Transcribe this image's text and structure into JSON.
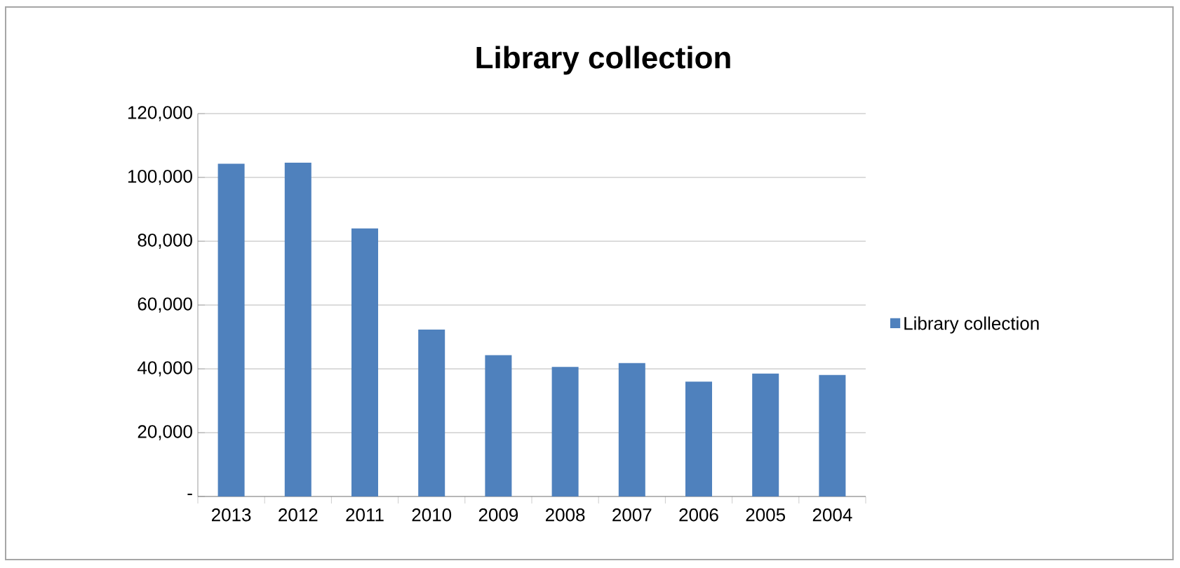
{
  "chart_data": {
    "type": "bar",
    "title": "Library collection",
    "categories": [
      "2013",
      "2012",
      "2011",
      "2010",
      "2009",
      "2008",
      "2007",
      "2006",
      "2005",
      "2004"
    ],
    "series": [
      {
        "name": "Library collection",
        "color": "#4f81bd",
        "values": [
          104300,
          104600,
          84000,
          52300,
          44300,
          40600,
          41800,
          36000,
          38500,
          38100
        ]
      }
    ],
    "ylim": [
      0,
      120000
    ],
    "yticks": [
      {
        "value": 0,
        "label": "-"
      },
      {
        "value": 20000,
        "label": "20,000"
      },
      {
        "value": 40000,
        "label": "40,000"
      },
      {
        "value": 60000,
        "label": "60,000"
      },
      {
        "value": 80000,
        "label": "80,000"
      },
      {
        "value": 100000,
        "label": "100,000"
      },
      {
        "value": 120000,
        "label": "120,000"
      }
    ],
    "grid": "y",
    "legend": "right"
  }
}
